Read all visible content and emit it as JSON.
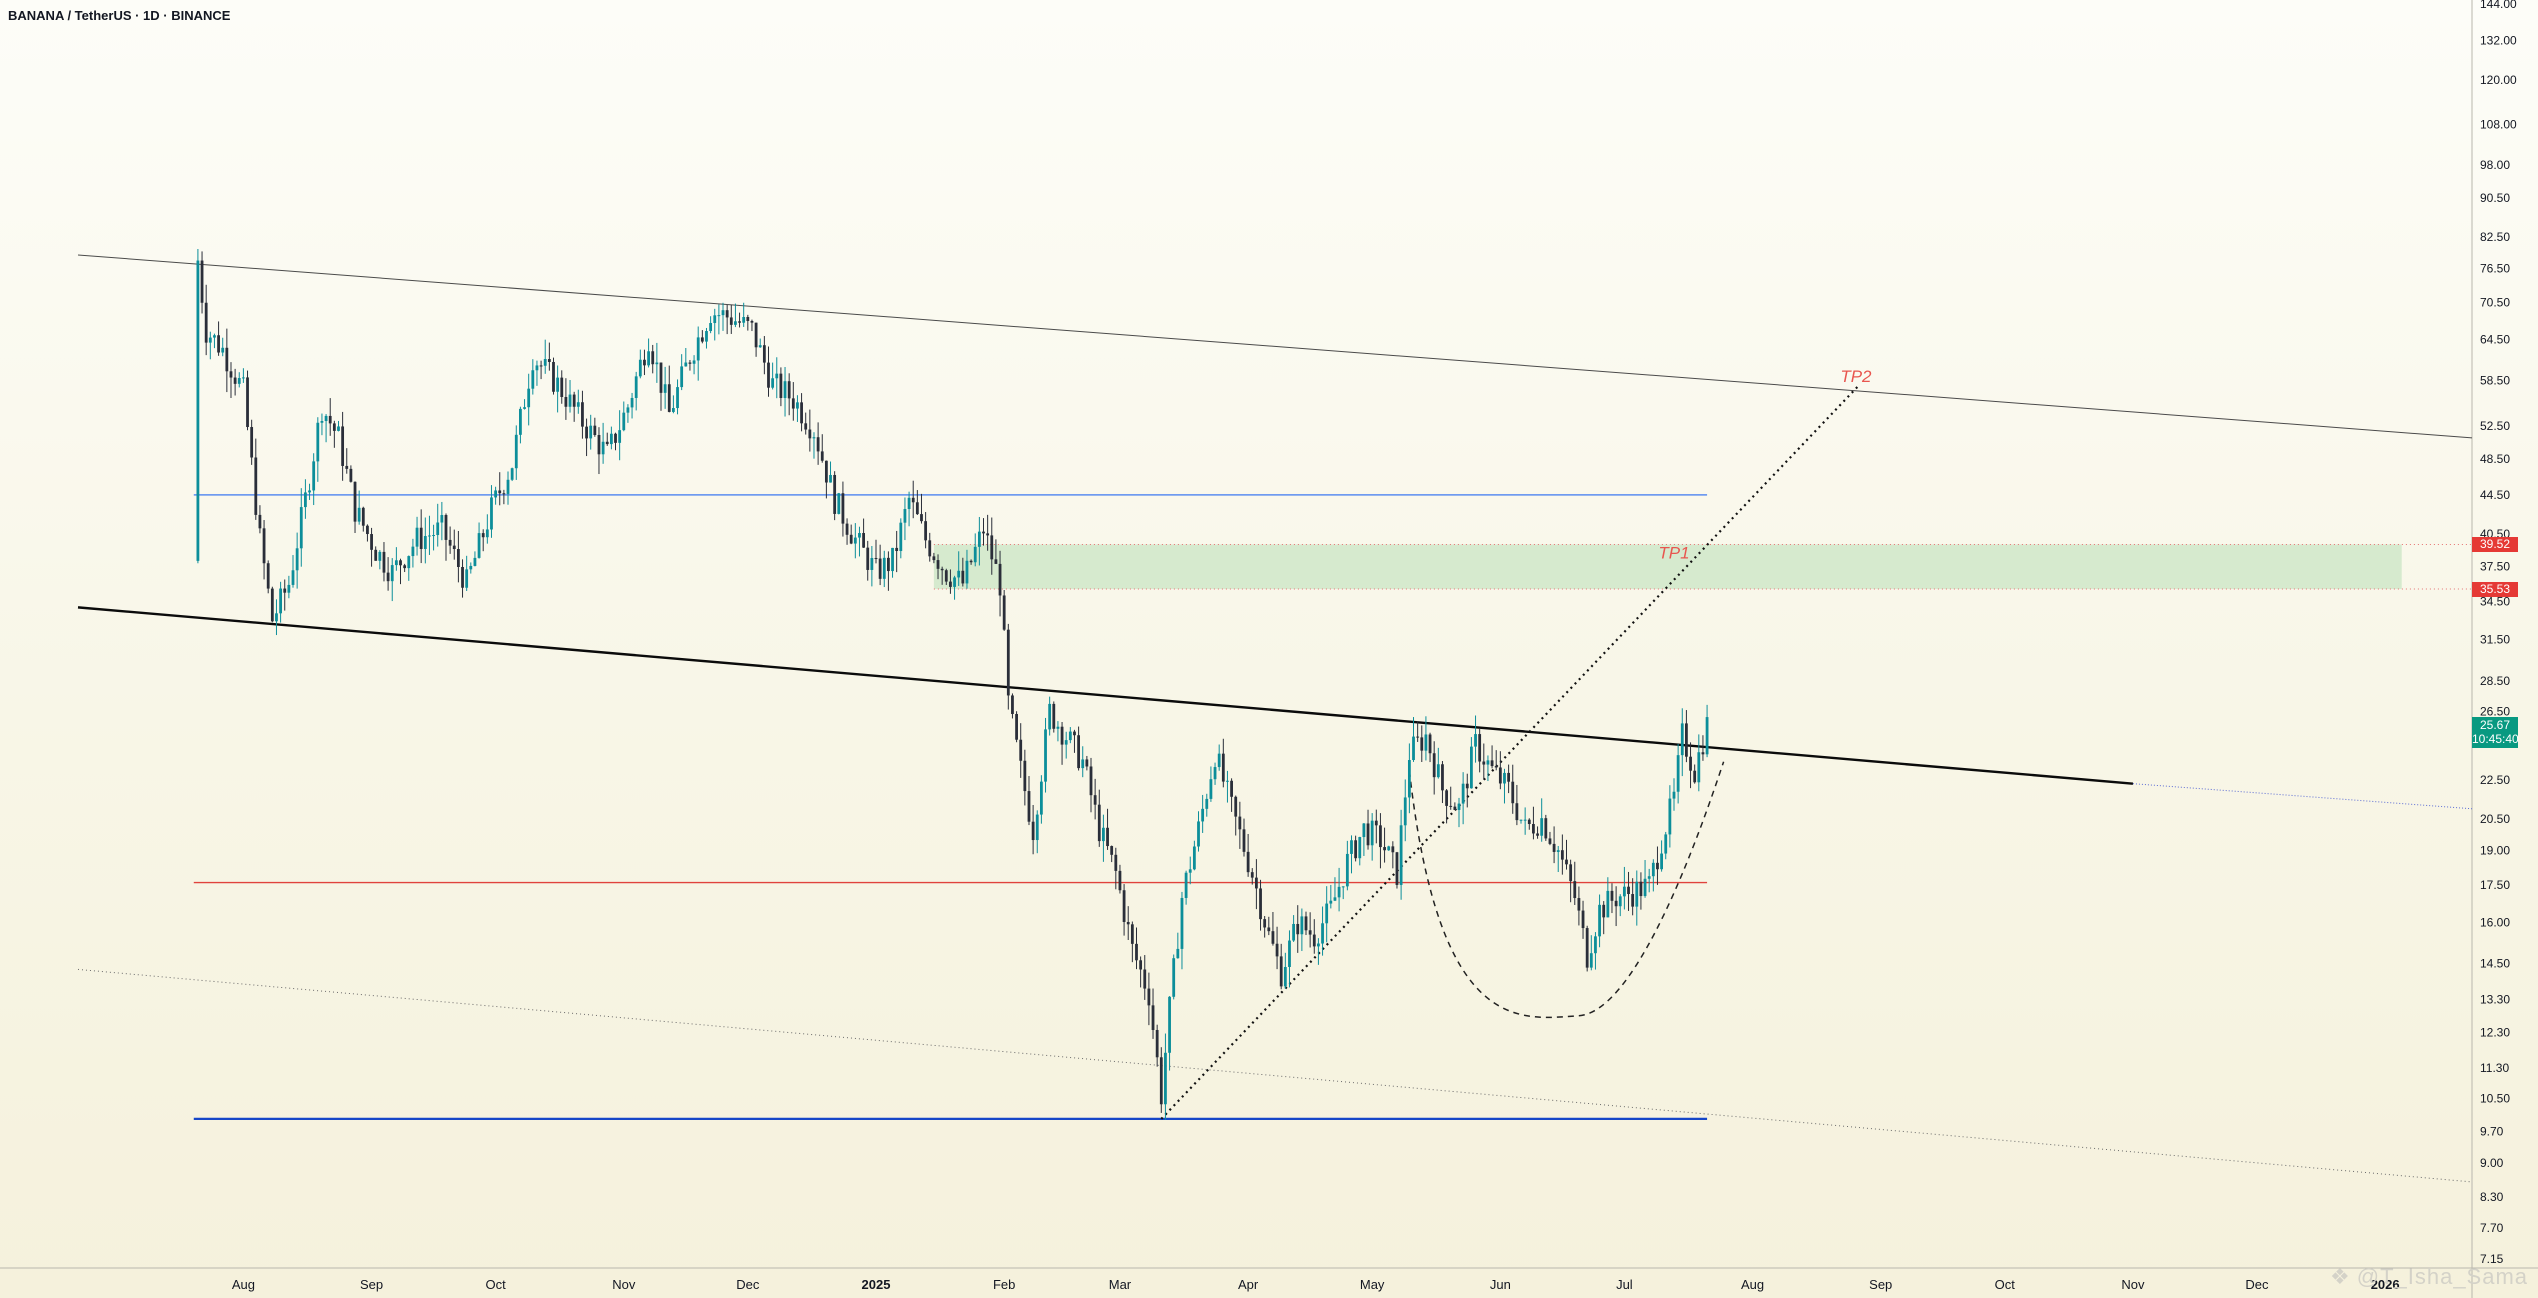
{
  "header": {
    "symbol_title": "BANANA / TetherUS · 1D · BINANCE"
  },
  "watermark": {
    "icon": "tradingview-logo-icon",
    "text": "@T_Isha_Sama"
  },
  "colors": {
    "up": "#0c8e9a",
    "down": "#2a2e39",
    "support_blue": "#1646c8",
    "resistance_blue": "#5b8df0",
    "red_line": "#e0423c",
    "tp_zone": "#c9e6c4",
    "tp_text": "#e8564f",
    "last_price": "#089981",
    "zone_tag": "#e53935"
  },
  "chart_data": {
    "type": "candlestick",
    "symbol": "BANANA / TetherUS",
    "interval": "1D",
    "exchange": "BINANCE",
    "y_scale": "log",
    "ylim": [
      7.0,
      144.0
    ],
    "y_ticks": [
      144.0,
      132.0,
      120.0,
      108.0,
      98.0,
      90.5,
      82.5,
      76.5,
      70.5,
      64.5,
      58.5,
      52.5,
      48.5,
      44.5,
      40.5,
      37.5,
      34.5,
      31.5,
      28.5,
      26.5,
      22.5,
      20.5,
      19.0,
      17.5,
      16.0,
      14.5,
      13.3,
      12.3,
      11.3,
      10.5,
      9.7,
      9.0,
      8.3,
      7.7,
      7.15
    ],
    "x_range": [
      "2024-06-22",
      "2026-01-22"
    ],
    "x_ticks": [
      {
        "date": "2024-08-01",
        "label": "Aug",
        "bold": false
      },
      {
        "date": "2024-09-01",
        "label": "Sep",
        "bold": false
      },
      {
        "date": "2024-10-01",
        "label": "Oct",
        "bold": false
      },
      {
        "date": "2024-11-01",
        "label": "Nov",
        "bold": false
      },
      {
        "date": "2024-12-01",
        "label": "Dec",
        "bold": false
      },
      {
        "date": "2025-01-01",
        "label": "2025",
        "bold": true
      },
      {
        "date": "2025-02-01",
        "label": "Feb",
        "bold": false
      },
      {
        "date": "2025-03-01",
        "label": "Mar",
        "bold": false
      },
      {
        "date": "2025-04-01",
        "label": "Apr",
        "bold": false
      },
      {
        "date": "2025-05-01",
        "label": "May",
        "bold": false
      },
      {
        "date": "2025-06-01",
        "label": "Jun",
        "bold": false
      },
      {
        "date": "2025-07-01",
        "label": "Jul",
        "bold": false
      },
      {
        "date": "2025-08-01",
        "label": "Aug",
        "bold": false
      },
      {
        "date": "2025-09-01",
        "label": "Sep",
        "bold": false
      },
      {
        "date": "2025-10-01",
        "label": "Oct",
        "bold": false
      },
      {
        "date": "2025-11-01",
        "label": "Nov",
        "bold": false
      },
      {
        "date": "2025-12-01",
        "label": "Dec",
        "bold": false
      },
      {
        "date": "2026-01-01",
        "label": "2026",
        "bold": true
      }
    ],
    "price_path": [
      [
        "2024-07-20",
        38.0
      ],
      [
        "2024-07-21",
        78.0
      ],
      [
        "2024-07-23",
        66.0
      ],
      [
        "2024-07-27",
        63.0
      ],
      [
        "2024-08-01",
        57.0
      ],
      [
        "2024-08-05",
        40.0
      ],
      [
        "2024-08-08",
        33.0
      ],
      [
        "2024-08-12",
        36.0
      ],
      [
        "2024-08-16",
        44.0
      ],
      [
        "2024-08-20",
        55.0
      ],
      [
        "2024-08-24",
        51.0
      ],
      [
        "2024-08-28",
        43.0
      ],
      [
        "2024-09-02",
        39.0
      ],
      [
        "2024-09-06",
        37.0
      ],
      [
        "2024-09-12",
        40.0
      ],
      [
        "2024-09-18",
        41.0
      ],
      [
        "2024-09-24",
        36.0
      ],
      [
        "2024-09-30",
        43.0
      ],
      [
        "2024-10-05",
        48.0
      ],
      [
        "2024-10-10",
        62.0
      ],
      [
        "2024-10-16",
        58.0
      ],
      [
        "2024-10-22",
        53.0
      ],
      [
        "2024-10-28",
        49.0
      ],
      [
        "2024-11-02",
        55.0
      ],
      [
        "2024-11-07",
        65.0
      ],
      [
        "2024-11-12",
        54.0
      ],
      [
        "2024-11-17",
        62.0
      ],
      [
        "2024-11-22",
        69.0
      ],
      [
        "2024-11-27",
        68.0
      ],
      [
        "2024-12-02",
        66.0
      ],
      [
        "2024-12-07",
        58.0
      ],
      [
        "2024-12-12",
        56.0
      ],
      [
        "2024-12-17",
        52.0
      ],
      [
        "2024-12-22",
        44.0
      ],
      [
        "2024-12-27",
        40.0
      ],
      [
        "2025-01-01",
        37.0
      ],
      [
        "2025-01-05",
        38.0
      ],
      [
        "2025-01-09",
        44.0
      ],
      [
        "2025-01-13",
        40.0
      ],
      [
        "2025-01-18",
        37.0
      ],
      [
        "2025-01-22",
        36.0
      ],
      [
        "2025-01-27",
        41.0
      ],
      [
        "2025-01-31",
        36.0
      ],
      [
        "2025-02-02",
        27.0
      ],
      [
        "2025-02-05",
        23.0
      ],
      [
        "2025-02-08",
        20.0
      ],
      [
        "2025-02-12",
        26.5
      ],
      [
        "2025-02-16",
        25.0
      ],
      [
        "2025-02-20",
        23.5
      ],
      [
        "2025-02-24",
        20.0
      ],
      [
        "2025-02-28",
        18.0
      ],
      [
        "2025-03-04",
        15.0
      ],
      [
        "2025-03-08",
        13.5
      ],
      [
        "2025-03-11",
        10.6
      ],
      [
        "2025-03-13",
        13.0
      ],
      [
        "2025-03-16",
        17.0
      ],
      [
        "2025-03-20",
        20.0
      ],
      [
        "2025-03-24",
        24.0
      ],
      [
        "2025-03-28",
        21.0
      ],
      [
        "2025-04-02",
        18.0
      ],
      [
        "2025-04-06",
        15.5
      ],
      [
        "2025-04-09",
        14.2
      ],
      [
        "2025-04-13",
        16.0
      ],
      [
        "2025-04-17",
        15.5
      ],
      [
        "2025-04-21",
        16.5
      ],
      [
        "2025-04-25",
        18.5
      ],
      [
        "2025-04-29",
        20.0
      ],
      [
        "2025-05-03",
        19.5
      ],
      [
        "2025-05-07",
        18.0
      ],
      [
        "2025-05-10",
        24.0
      ],
      [
        "2025-05-14",
        25.0
      ],
      [
        "2025-05-18",
        22.0
      ],
      [
        "2025-05-22",
        21.0
      ],
      [
        "2025-05-26",
        24.5
      ],
      [
        "2025-05-30",
        23.0
      ],
      [
        "2025-06-03",
        22.0
      ],
      [
        "2025-06-07",
        20.0
      ],
      [
        "2025-06-11",
        20.5
      ],
      [
        "2025-06-15",
        19.0
      ],
      [
        "2025-06-19",
        17.0
      ],
      [
        "2025-06-22",
        14.8
      ],
      [
        "2025-06-25",
        16.5
      ],
      [
        "2025-06-29",
        17.0
      ],
      [
        "2025-07-03",
        17.2
      ],
      [
        "2025-07-07",
        17.5
      ],
      [
        "2025-07-10",
        19.5
      ],
      [
        "2025-07-13",
        21.5
      ],
      [
        "2025-07-15",
        25.0
      ],
      [
        "2025-07-18",
        23.0
      ],
      [
        "2025-07-21",
        25.67
      ]
    ],
    "drawings": [
      {
        "kind": "line",
        "style": "thin",
        "points": [
          [
            "2024-06-22",
            79.0
          ],
          [
            "2026-01-22",
            51.0
          ]
        ]
      },
      {
        "kind": "line",
        "style": "thick",
        "points": [
          [
            "2024-06-22",
            34.0
          ],
          [
            "2025-11-01",
            22.3
          ]
        ]
      },
      {
        "kind": "line",
        "style": "thick-extension-dotted",
        "points": [
          [
            "2025-11-01",
            22.3
          ],
          [
            "2026-01-22",
            21.0
          ]
        ]
      },
      {
        "kind": "line",
        "style": "dotted-grey",
        "points": [
          [
            "2024-06-22",
            14.3
          ],
          [
            "2026-01-22",
            8.6
          ]
        ]
      },
      {
        "kind": "hline",
        "style": "resistance",
        "value": 44.5,
        "from": "2024-07-20",
        "to": "2025-07-21"
      },
      {
        "kind": "hline",
        "style": "red",
        "value": 17.6,
        "from": "2024-07-20",
        "to": "2025-07-21"
      },
      {
        "kind": "hline",
        "style": "support",
        "value": 10.0,
        "from": "2024-07-20",
        "to": "2025-07-21"
      },
      {
        "kind": "line",
        "style": "dotted-black",
        "points": [
          [
            "2025-03-11",
            10.0
          ],
          [
            "2025-08-27",
            58.0
          ]
        ]
      }
    ],
    "cup_arc": {
      "from": [
        "2025-05-10",
        23.0
      ],
      "bottom": [
        "2025-06-20",
        12.8
      ],
      "to": [
        "2025-07-25",
        23.5
      ]
    },
    "tp_zone": {
      "from": "2025-01-15",
      "to": "2026-01-05",
      "low": 35.53,
      "high": 39.52
    },
    "tp_zone_tags": [
      {
        "label": "39.52",
        "value": 39.52
      },
      {
        "label": "35.53",
        "value": 35.53
      }
    ],
    "annotations": [
      {
        "text": "TP1",
        "date": "2025-07-13",
        "value": 38.2
      },
      {
        "text": "TP2",
        "date": "2025-08-26",
        "value": 58.3
      }
    ],
    "last_price": {
      "value": 25.67,
      "label": "25.67",
      "countdown": "10:45:40"
    }
  }
}
